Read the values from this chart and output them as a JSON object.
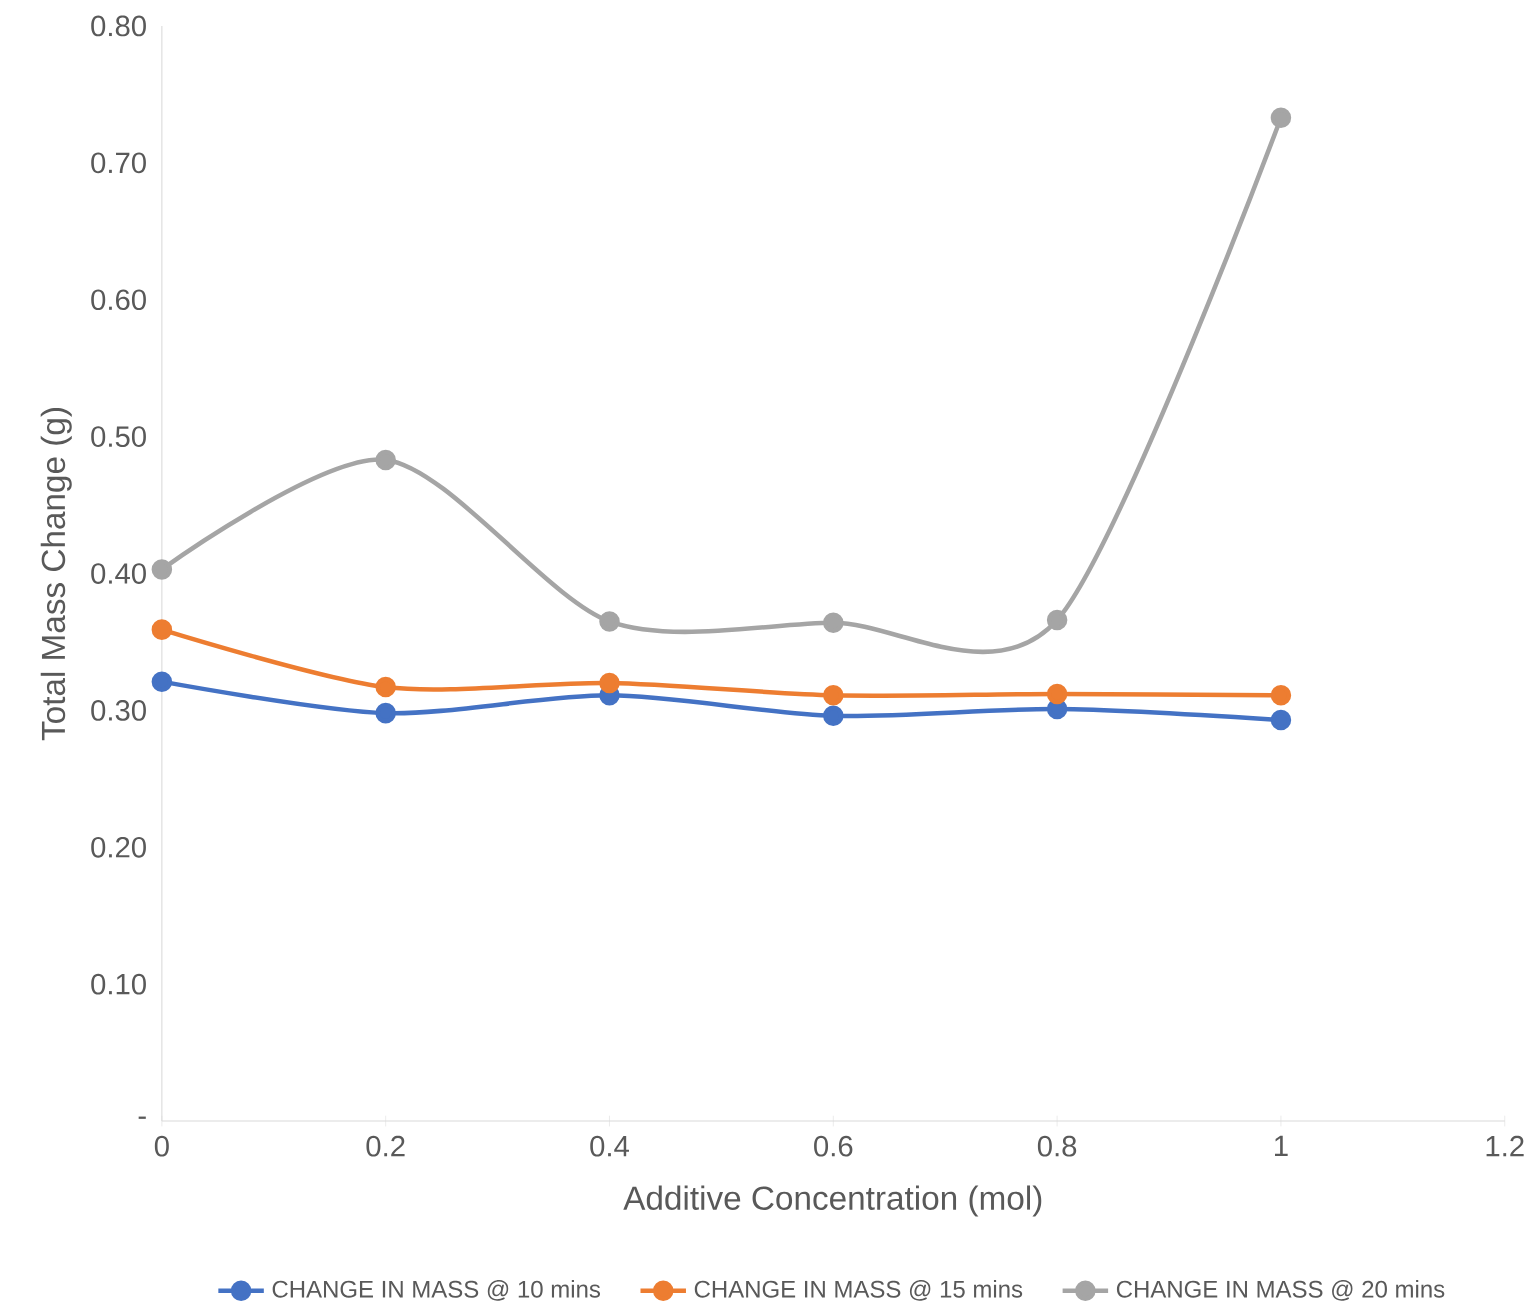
{
  "chart_data": {
    "type": "line",
    "xlabel": "Additive Concentration (mol)",
    "ylabel": "Total Mass Change (g)",
    "x": [
      0,
      0.2,
      0.4,
      0.6,
      0.8,
      1
    ],
    "series": [
      {
        "name": "CHANGE IN MASS @ 10 mins",
        "color": "#4472c4",
        "values": [
          0.321,
          0.298,
          0.311,
          0.296,
          0.301,
          0.293
        ]
      },
      {
        "name": "CHANGE IN MASS @ 15 mins",
        "color": "#ed7d31",
        "values": [
          0.359,
          0.317,
          0.32,
          0.311,
          0.312,
          0.311
        ]
      },
      {
        "name": "CHANGE IN MASS @ 20 mins",
        "color": "#a5a5a5",
        "values": [
          0.403,
          0.483,
          0.365,
          0.364,
          0.366,
          0.733
        ]
      }
    ],
    "xlim": [
      0,
      1.2
    ],
    "ylim": [
      0,
      0.8
    ],
    "xticks": [
      0,
      0.2,
      0.4,
      0.6,
      0.8,
      1,
      1.2
    ],
    "yticks": [
      {
        "value": 0,
        "label": "-"
      },
      {
        "value": 0.1,
        "label": "0.10"
      },
      {
        "value": 0.2,
        "label": "0.20"
      },
      {
        "value": 0.3,
        "label": "0.30"
      },
      {
        "value": 0.4,
        "label": "0.40"
      },
      {
        "value": 0.5,
        "label": "0.50"
      },
      {
        "value": 0.6,
        "label": "0.60"
      },
      {
        "value": 0.7,
        "label": "0.70"
      },
      {
        "value": 0.8,
        "label": "0.80"
      }
    ],
    "grid": false,
    "legend": "bottom",
    "marker": "circle",
    "line_style": "solid"
  }
}
